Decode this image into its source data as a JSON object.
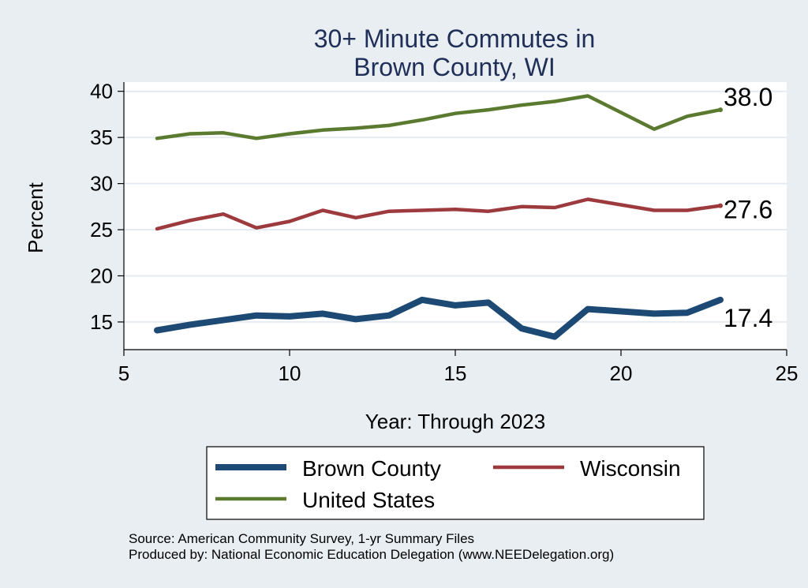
{
  "chart_data": {
    "type": "line",
    "title": [
      "30+ Minute Commutes in",
      "Brown County, WI"
    ],
    "xlabel": "Year: Through 2023",
    "ylabel": "Percent",
    "xlim": [
      5,
      25
    ],
    "ylim": [
      12,
      41
    ],
    "xticks": [
      5,
      10,
      15,
      20,
      25
    ],
    "yticks": [
      15,
      20,
      25,
      30,
      35,
      40
    ],
    "grid": true,
    "x": [
      6,
      7,
      8,
      9,
      10,
      11,
      12,
      13,
      14,
      15,
      16,
      17,
      18,
      19,
      21,
      22,
      23
    ],
    "series": [
      {
        "name": "United States",
        "color": "#5a7a2f",
        "values": [
          34.9,
          35.4,
          35.5,
          34.9,
          35.4,
          35.8,
          36.0,
          36.3,
          36.9,
          37.6,
          38.0,
          38.5,
          38.9,
          39.5,
          35.9,
          37.3,
          38.0
        ],
        "end_label": "38.0"
      },
      {
        "name": "Wisconsin",
        "color": "#9c3a3e",
        "values": [
          25.1,
          26.0,
          26.7,
          25.2,
          25.9,
          27.1,
          26.3,
          27.0,
          27.1,
          27.2,
          27.0,
          27.5,
          27.4,
          28.3,
          27.1,
          27.1,
          27.6
        ],
        "end_label": "27.6"
      },
      {
        "name": "Brown County",
        "color": "#1c4a74",
        "values": [
          14.1,
          14.7,
          15.2,
          15.7,
          15.6,
          15.9,
          15.3,
          15.7,
          17.4,
          16.8,
          17.1,
          14.3,
          13.4,
          16.4,
          15.9,
          16.0,
          17.4
        ],
        "end_label": "17.4"
      }
    ],
    "legend": {
      "placement": "bottom",
      "entries": [
        "Brown County",
        "Wisconsin",
        "United States"
      ]
    },
    "notes": [
      "Source: American Community Survey, 1-yr Summary Files",
      "Produced by: National Economic Education Delegation (www.NEEDelegation.org)"
    ]
  }
}
